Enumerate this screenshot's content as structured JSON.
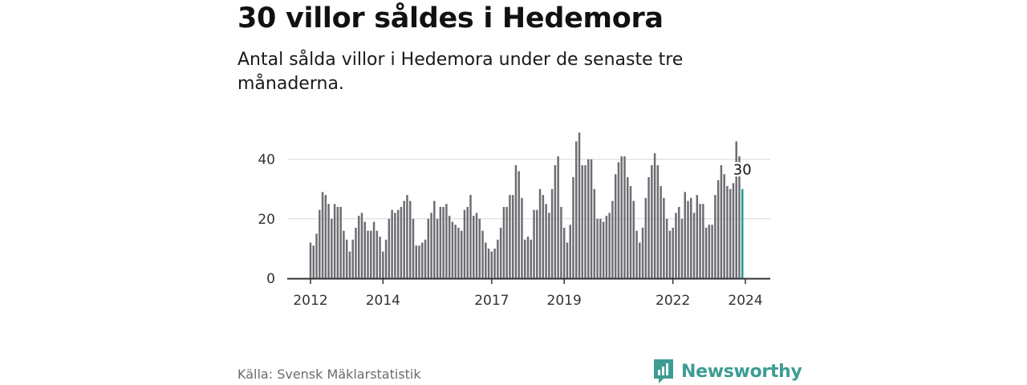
{
  "title": "30 villor såldes i Hedemora",
  "subtitle": "Antal sålda villor i Hedemora under de senaste tre månaderna.",
  "source": "Källa: Svensk Mäklarstatistik",
  "brand": "Newsworthy",
  "colors": {
    "bar": "#6e6d73",
    "highlight": "#1f9b91",
    "grid": "#d9d9d9",
    "axis": "#333333",
    "brand": "#3d9c93"
  },
  "chart_data": {
    "type": "bar",
    "title": "30 villor såldes i Hedemora",
    "xlabel": "",
    "ylabel": "",
    "ylim": [
      0,
      50
    ],
    "yticks": [
      "0",
      "20",
      "40"
    ],
    "ytick_values": [
      0,
      20,
      40
    ],
    "xticks": [
      {
        "label": "2012",
        "index": 0
      },
      {
        "label": "2014",
        "index": 24
      },
      {
        "label": "2017",
        "index": 60
      },
      {
        "label": "2019",
        "index": 84
      },
      {
        "label": "2022",
        "index": 120
      },
      {
        "label": "2024",
        "index": 144
      }
    ],
    "start": "2012-01",
    "frequency": "monthly",
    "values": [
      12,
      11,
      15,
      23,
      29,
      28,
      25,
      20,
      25,
      24,
      24,
      16,
      13,
      9,
      13,
      17,
      21,
      22,
      19,
      16,
      16,
      19,
      16,
      14,
      9,
      13,
      20,
      23,
      22,
      23,
      24,
      26,
      28,
      26,
      20,
      11,
      11,
      12,
      13,
      20,
      22,
      26,
      20,
      24,
      24,
      25,
      21,
      19,
      18,
      17,
      16,
      23,
      24,
      28,
      21,
      22,
      20,
      16,
      12,
      10,
      9,
      10,
      13,
      17,
      24,
      24,
      28,
      28,
      38,
      36,
      27,
      13,
      14,
      13,
      23,
      23,
      30,
      28,
      25,
      22,
      30,
      38,
      41,
      24,
      17,
      12,
      18,
      34,
      46,
      49,
      38,
      38,
      40,
      40,
      30,
      20,
      20,
      19,
      21,
      22,
      26,
      35,
      39,
      41,
      41,
      34,
      31,
      26,
      16,
      12,
      17,
      27,
      34,
      38,
      42,
      38,
      31,
      27,
      20,
      16,
      17,
      22,
      24,
      20,
      29,
      26,
      27,
      22,
      28,
      25,
      25,
      17,
      18,
      18,
      28,
      33,
      38,
      35,
      31,
      30,
      32,
      46,
      41,
      30
    ],
    "highlight_label": "30"
  }
}
